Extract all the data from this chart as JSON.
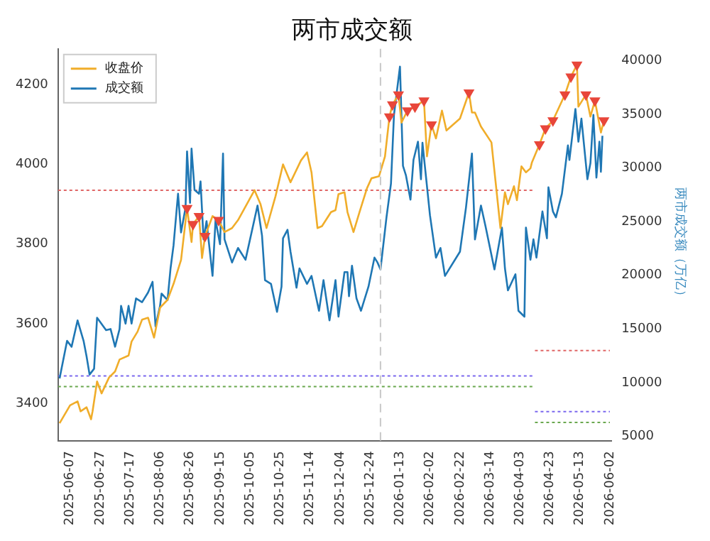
{
  "chart_data": {
    "type": "line",
    "title": "两市成交额",
    "y2label": "两市成交额（万亿）",
    "legend": "top left",
    "grid": false,
    "xlim": [
      "2025-05-30",
      "2026-06-03"
    ],
    "xticks": [
      "2025-06-07",
      "2025-06-27",
      "2025-07-17",
      "2025-08-06",
      "2025-08-26",
      "2025-09-15",
      "2025-10-05",
      "2025-10-25",
      "2025-11-14",
      "2025-12-04",
      "2025-12-24",
      "2026-01-13",
      "2026-02-02",
      "2026-02-22",
      "2026-03-14",
      "2026-04-03",
      "2026-04-23",
      "2026-05-13",
      "2026-06-02"
    ],
    "ylim": [
      3305,
      4290
    ],
    "yticks": [
      3400,
      3600,
      3800,
      4000,
      4200
    ],
    "y2lim": [
      4550,
      41100
    ],
    "y2ticks": [
      5000,
      10000,
      15000,
      20000,
      25000,
      30000,
      35000,
      40000
    ],
    "ref_lines": [
      {
        "axis": "x",
        "value": "2025-12-31",
        "color": "#c8c8c8",
        "line_style": "dashed"
      }
    ],
    "series": [
      {
        "name": "收盘价",
        "color": "#f0ad2a",
        "x": [
          "2025-05-31",
          "2025-06-07",
          "2025-06-12",
          "2025-06-14",
          "2025-06-18",
          "2025-06-21",
          "2025-06-22",
          "2025-06-25",
          "2025-06-28",
          "2025-07-03",
          "2025-07-07",
          "2025-07-10",
          "2025-07-16",
          "2025-07-18",
          "2025-07-22",
          "2025-07-25",
          "2025-07-29",
          "2025-08-02",
          "2025-08-06",
          "2025-08-11",
          "2025-08-15",
          "2025-08-20",
          "2025-08-24",
          "2025-08-27",
          "2025-08-28",
          "2025-09-01",
          "2025-09-03",
          "2025-09-05",
          "2025-09-10",
          "2025-09-14",
          "2025-09-18",
          "2025-09-23",
          "2025-09-27",
          "2025-10-08",
          "2025-10-12",
          "2025-10-16",
          "2025-10-22",
          "2025-10-27",
          "2025-11-01",
          "2025-11-08",
          "2025-11-12",
          "2025-11-15",
          "2025-11-19",
          "2025-11-22",
          "2025-11-28",
          "2025-12-01",
          "2025-12-03",
          "2025-12-07",
          "2025-12-09",
          "2025-12-13",
          "2025-12-17",
          "2025-12-22",
          "2025-12-25",
          "2025-12-30",
          "2026-01-03",
          "2026-01-06",
          "2026-01-08",
          "2026-01-12",
          "2026-01-14",
          "2026-01-18",
          "2026-01-23",
          "2026-01-29",
          "2026-01-31",
          "2026-02-03",
          "2026-02-06",
          "2026-02-10",
          "2026-02-13",
          "2026-02-22",
          "2026-02-28",
          "2026-03-02",
          "2026-03-04",
          "2026-03-08",
          "2026-03-15",
          "2026-03-21",
          "2026-03-24",
          "2026-03-26",
          "2026-03-30",
          "2026-04-01",
          "2026-04-04",
          "2026-04-07",
          "2026-04-10",
          "2026-04-11",
          "2026-04-16",
          "2026-04-20",
          "2026-04-25",
          "2026-05-03",
          "2026-05-07",
          "2026-05-11",
          "2026-05-12",
          "2026-05-17",
          "2026-05-20",
          "2026-05-23",
          "2026-05-27",
          "2026-05-29"
        ],
        "values": [
          3350,
          3395,
          3405,
          3380,
          3390,
          3360,
          3380,
          3455,
          3425,
          3465,
          3480,
          3510,
          3520,
          3555,
          3580,
          3610,
          3615,
          3565,
          3640,
          3660,
          3700,
          3760,
          3890,
          3805,
          3850,
          3870,
          3765,
          3820,
          3870,
          3860,
          3830,
          3840,
          3860,
          3935,
          3900,
          3840,
          3920,
          4000,
          3955,
          4010,
          4030,
          3980,
          3840,
          3845,
          3880,
          3885,
          3925,
          3930,
          3880,
          3830,
          3880,
          3940,
          3965,
          3970,
          4020,
          4120,
          4150,
          4175,
          4105,
          4135,
          4145,
          4160,
          4020,
          4100,
          4065,
          4135,
          4085,
          4115,
          4180,
          4130,
          4130,
          4095,
          4055,
          3840,
          3930,
          3900,
          3945,
          3910,
          3995,
          3980,
          3990,
          4005,
          4050,
          4090,
          4110,
          4175,
          4220,
          4250,
          4145,
          4175,
          4120,
          4160,
          4080,
          4110
        ]
      },
      {
        "name": "成交额",
        "axis": "y2",
        "color": "#1f77b4",
        "x": [
          "2025-05-31",
          "2025-06-05",
          "2025-06-08",
          "2025-06-12",
          "2025-06-16",
          "2025-06-18",
          "2025-06-20",
          "2025-06-23",
          "2025-06-25",
          "2025-07-01",
          "2025-07-04",
          "2025-07-07",
          "2025-07-10",
          "2025-07-11",
          "2025-07-14",
          "2025-07-16",
          "2025-07-18",
          "2025-07-21",
          "2025-07-25",
          "2025-07-29",
          "2025-08-01",
          "2025-08-03",
          "2025-08-06",
          "2025-08-07",
          "2025-08-11",
          "2025-08-13",
          "2025-08-15",
          "2025-08-18",
          "2025-08-20",
          "2025-08-23",
          "2025-08-24",
          "2025-08-26",
          "2025-08-27",
          "2025-08-29",
          "2025-09-01",
          "2025-09-02",
          "2025-09-04",
          "2025-09-06",
          "2025-09-10",
          "2025-09-12",
          "2025-09-15",
          "2025-09-17",
          "2025-09-18",
          "2025-09-23",
          "2025-09-27",
          "2025-10-02",
          "2025-10-10",
          "2025-10-13",
          "2025-10-15",
          "2025-10-19",
          "2025-10-23",
          "2025-10-26",
          "2025-10-27",
          "2025-10-30",
          "2025-11-01",
          "2025-11-05",
          "2025-11-07",
          "2025-11-12",
          "2025-11-15",
          "2025-11-20",
          "2025-11-23",
          "2025-11-27",
          "2025-12-01",
          "2025-12-03",
          "2025-12-07",
          "2025-12-09",
          "2025-12-10",
          "2025-12-12",
          "2025-12-15",
          "2025-12-18",
          "2025-12-23",
          "2025-12-27",
          "2025-12-29",
          "2025-12-31",
          "2026-01-04",
          "2026-01-07",
          "2026-01-09",
          "2026-01-13",
          "2026-01-15",
          "2026-01-17",
          "2026-01-20",
          "2026-01-22",
          "2026-01-25",
          "2026-01-27",
          "2026-01-28",
          "2026-02-02",
          "2026-02-06",
          "2026-02-09",
          "2026-02-12",
          "2026-02-22",
          "2026-02-26",
          "2026-03-02",
          "2026-03-04",
          "2026-03-08",
          "2026-03-11",
          "2026-03-17",
          "2026-03-22",
          "2026-03-24",
          "2026-03-26",
          "2026-03-31",
          "2026-04-02",
          "2026-04-06",
          "2026-04-07",
          "2026-04-10",
          "2026-04-12",
          "2026-04-14",
          "2026-04-18",
          "2026-04-21",
          "2026-04-22",
          "2026-04-25",
          "2026-04-27",
          "2026-05-01",
          "2026-05-05",
          "2026-05-06",
          "2026-05-10",
          "2026-05-12",
          "2026-05-14",
          "2026-05-18",
          "2026-05-20",
          "2026-05-22",
          "2026-05-24",
          "2026-05-26",
          "2026-05-27",
          "2026-05-28"
        ],
        "values": [
          10400,
          13900,
          13350,
          15800,
          13900,
          12450,
          10750,
          11300,
          16050,
          14900,
          15000,
          13350,
          15000,
          17150,
          15500,
          17150,
          15500,
          17850,
          17500,
          18400,
          19400,
          15250,
          17150,
          18300,
          17700,
          20650,
          22800,
          27600,
          24000,
          26300,
          31550,
          26750,
          31800,
          27950,
          27600,
          28750,
          23350,
          25050,
          19950,
          25150,
          22900,
          31350,
          23350,
          21200,
          22550,
          21450,
          26500,
          23700,
          19550,
          19200,
          16600,
          18950,
          23450,
          24250,
          22200,
          18850,
          20650,
          19200,
          19950,
          16700,
          19550,
          15800,
          19550,
          16150,
          20300,
          20300,
          18050,
          20900,
          17850,
          16700,
          18950,
          21650,
          21200,
          20550,
          25400,
          28550,
          34950,
          39450,
          30200,
          29300,
          27050,
          30750,
          32450,
          28950,
          32350,
          25600,
          21650,
          22550,
          19950,
          22200,
          26300,
          31350,
          23350,
          26500,
          24600,
          20550,
          24450,
          20650,
          18600,
          20100,
          16700,
          16150,
          24450,
          21450,
          23350,
          21650,
          25950,
          23450,
          28200,
          25950,
          25400,
          27600,
          32100,
          30750,
          35500,
          32450,
          34600,
          28950,
          30450,
          34950,
          29100,
          32450,
          29650,
          33000
        ]
      },
      {
        "type": "scatter",
        "marker": "triangle",
        "color": "#e8463a",
        "x": [
          "2025-08-24",
          "2025-08-28",
          "2025-09-01",
          "2025-09-05",
          "2025-09-14",
          "2026-01-06",
          "2026-01-08",
          "2026-01-12",
          "2026-01-18",
          "2026-01-23",
          "2026-01-29",
          "2026-02-03",
          "2026-02-28",
          "2026-04-16",
          "2026-04-20",
          "2026-04-25",
          "2026-05-03",
          "2026-05-07",
          "2026-05-11",
          "2026-05-17",
          "2026-05-23",
          "2026-05-29"
        ],
        "values": [
          3890,
          3850,
          3870,
          3820,
          3860,
          4120,
          4150,
          4175,
          4135,
          4145,
          4160,
          4100,
          4180,
          4050,
          4090,
          4110,
          4175,
          4220,
          4250,
          4175,
          4160,
          4110
        ]
      },
      {
        "line_style": "dotted",
        "color": "#e06666",
        "x": [
          "2025-05-30",
          "2026-04-12"
        ],
        "values": [
          3935,
          3935
        ]
      },
      {
        "line_style": "dotted",
        "color": "#7b68ee",
        "x": [
          "2025-05-30",
          "2026-04-12"
        ],
        "values": [
          3469,
          3469
        ]
      },
      {
        "line_style": "dotted",
        "color": "#6aa84f",
        "x": [
          "2025-05-30",
          "2026-04-12"
        ],
        "values": [
          3442,
          3442
        ]
      },
      {
        "axis": "y2",
        "line_style": "dotted",
        "color": "#e06666",
        "x": [
          "2026-04-13",
          "2026-06-02"
        ],
        "values": [
          13000,
          13000
        ]
      },
      {
        "axis": "y2",
        "line_style": "dotted",
        "color": "#7b68ee",
        "x": [
          "2026-04-13",
          "2026-06-02"
        ],
        "values": [
          7300,
          7300
        ]
      },
      {
        "axis": "y2",
        "line_style": "dotted",
        "color": "#6aa84f",
        "x": [
          "2026-04-13",
          "2026-06-02"
        ],
        "values": [
          6300,
          6300
        ]
      }
    ]
  }
}
